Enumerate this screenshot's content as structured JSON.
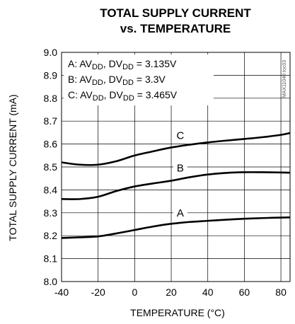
{
  "chart_data": {
    "type": "line",
    "title_line1": "TOTAL SUPPLY CURRENT",
    "title_line2": "vs. TEMPERATURE",
    "xlabel": "TEMPERATURE (°C)",
    "ylabel": "TOTAL SUPPLY CURRENT (mA)",
    "xlim": [
      -40,
      85
    ],
    "ylim": [
      8.0,
      9.0
    ],
    "x_ticks": [
      -40,
      -20,
      0,
      20,
      40,
      60,
      80
    ],
    "y_ticks": [
      8.0,
      8.1,
      8.2,
      8.3,
      8.4,
      8.5,
      8.6,
      8.7,
      8.8,
      8.9,
      9.0
    ],
    "x_tick_labels": [
      "-40",
      "-20",
      "0",
      "20",
      "40",
      "60",
      "80"
    ],
    "y_tick_labels": [
      "8.0",
      "8.1",
      "8.2",
      "8.3",
      "8.4",
      "8.5",
      "8.6",
      "8.7",
      "8.8",
      "8.9",
      "9.0"
    ],
    "grid": true,
    "legend": {
      "placement": "top-left",
      "entries": [
        {
          "prefix": "A: AV",
          "sub1": "DD",
          "mid": ", DV",
          "sub2": "DD",
          "suffix": " = 3.135V"
        },
        {
          "prefix": "B: AV",
          "sub1": "DD",
          "mid": ", DV",
          "sub2": "DD",
          "suffix": " = 3.3V"
        },
        {
          "prefix": "C: AV",
          "sub1": "DD",
          "mid": ", DV",
          "sub2": "DD",
          "suffix": " = 3.465V"
        }
      ]
    },
    "series": [
      {
        "name": "A",
        "x": [
          -40,
          -30,
          -20,
          -10,
          0,
          10,
          20,
          30,
          40,
          50,
          60,
          70,
          80,
          85
        ],
        "y": [
          8.19,
          8.193,
          8.197,
          8.21,
          8.225,
          8.24,
          8.252,
          8.26,
          8.265,
          8.27,
          8.274,
          8.277,
          8.279,
          8.28
        ],
        "label_x": 30
      },
      {
        "name": "B",
        "x": [
          -40,
          -30,
          -20,
          -10,
          0,
          10,
          20,
          30,
          40,
          50,
          60,
          70,
          80,
          85
        ],
        "y": [
          8.36,
          8.36,
          8.37,
          8.395,
          8.415,
          8.428,
          8.44,
          8.455,
          8.467,
          8.474,
          8.477,
          8.477,
          8.476,
          8.475
        ],
        "label_x": 30
      },
      {
        "name": "C",
        "x": [
          -40,
          -30,
          -20,
          -10,
          0,
          10,
          20,
          30,
          40,
          50,
          60,
          70,
          80,
          85
        ],
        "y": [
          8.52,
          8.51,
          8.51,
          8.525,
          8.55,
          8.568,
          8.585,
          8.597,
          8.607,
          8.615,
          8.622,
          8.63,
          8.64,
          8.648
        ],
        "label_x": 30
      }
    ],
    "watermark": "MAX11040 toc03"
  }
}
